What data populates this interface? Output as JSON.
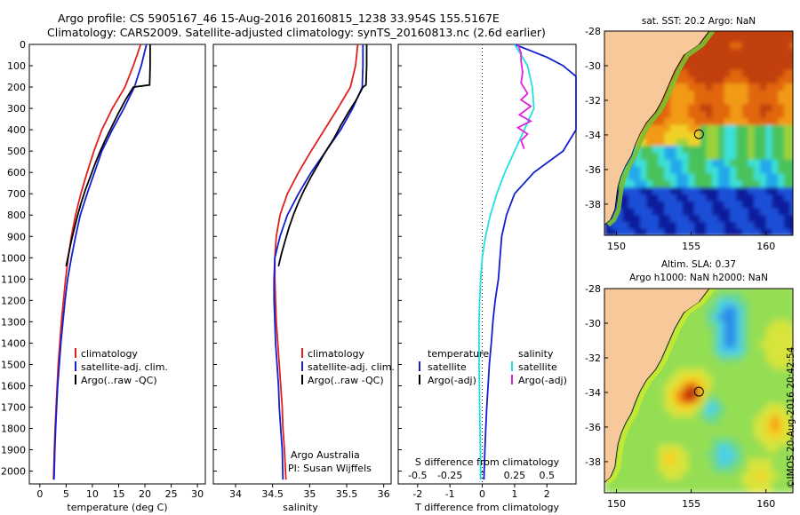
{
  "header": {
    "line1": "Argo profile: CS 5905167_46 15-Aug-2016 20160815_1238 33.954S 155.5167E",
    "line2": "Climatology: CARS2009. Satellite-adjusted climatology: synTS_20160813.nc (2.6d earlier)"
  },
  "credit": "©IMOS 20-Aug-2016 20:42:54",
  "colors": {
    "climatology": "#e02020",
    "satellite": "#1020d0",
    "argo": "#000000",
    "salinity_sat": "#20e0e0",
    "salinity_argo": "#e020e0",
    "land": "#f7c99a"
  },
  "chart_data": [
    {
      "type": "line",
      "id": "temperature",
      "xlabel": "temperature (deg C)",
      "ylabel": "",
      "xlim": [
        -2,
        31.5
      ],
      "ylim": [
        0,
        2060
      ],
      "yinverted": true,
      "xticks": [
        "0",
        "5",
        "10",
        "15",
        "20",
        "25",
        "30"
      ],
      "xtick_values": [
        0,
        5,
        10,
        15,
        20,
        25,
        30
      ],
      "yticks": [
        "0",
        "100",
        "200",
        "300",
        "400",
        "500",
        "600",
        "700",
        "800",
        "900",
        "1000",
        "1100",
        "1200",
        "1300",
        "1400",
        "1500",
        "1600",
        "1700",
        "1800",
        "1900",
        "2000"
      ],
      "ytick_values": [
        0,
        100,
        200,
        300,
        400,
        500,
        600,
        700,
        800,
        900,
        1000,
        1100,
        1200,
        1300,
        1400,
        1500,
        1600,
        1700,
        1800,
        1900,
        2000
      ],
      "legend": [
        "climatology",
        "satellite-adj. clim.",
        "Argo(..raw -QC)"
      ],
      "legend_position": "bottom-center",
      "series": [
        {
          "name": "climatology",
          "color": "#e02020",
          "depth": [
            0,
            100,
            200,
            300,
            400,
            500,
            600,
            700,
            800,
            900,
            1000,
            1100,
            1200,
            1300,
            1400,
            1500,
            1600,
            1700,
            1800,
            1900,
            2040
          ],
          "values": [
            19.2,
            17.8,
            16.2,
            13.8,
            11.8,
            10.3,
            9.0,
            7.8,
            6.8,
            6.0,
            5.4,
            4.9,
            4.5,
            4.1,
            3.8,
            3.5,
            3.3,
            3.1,
            2.9,
            2.75,
            2.6
          ]
        },
        {
          "name": "satellite-adj. clim.",
          "color": "#1020d0",
          "depth": [
            0,
            100,
            200,
            300,
            400,
            500,
            600,
            700,
            800,
            900,
            1000,
            1100,
            1200,
            1300,
            1400,
            1500,
            1600,
            1700,
            1800,
            1900,
            2040
          ],
          "values": [
            20.3,
            19.3,
            18.0,
            16.0,
            13.8,
            11.8,
            10.4,
            9.0,
            7.7,
            6.8,
            6.0,
            5.3,
            4.8,
            4.4,
            4.0,
            3.7,
            3.4,
            3.2,
            3.0,
            2.85,
            2.7
          ]
        },
        {
          "name": "Argo(..raw -QC)",
          "color": "#000000",
          "depth": [
            0,
            50,
            100,
            150,
            190,
            200,
            260,
            320,
            380,
            440,
            500,
            560,
            620,
            680,
            740,
            800,
            860,
            920,
            980,
            1040
          ],
          "values": [
            21.0,
            21.0,
            21.0,
            20.95,
            20.9,
            17.8,
            16.3,
            15.0,
            13.8,
            12.6,
            11.5,
            10.5,
            9.6,
            8.7,
            7.9,
            7.2,
            6.6,
            6.0,
            5.5,
            5.0
          ]
        }
      ]
    },
    {
      "type": "line",
      "id": "salinity",
      "xlabel": "salinity",
      "ylabel": "",
      "xlim": [
        33.7,
        36.1
      ],
      "ylim": [
        0,
        2060
      ],
      "yinverted": true,
      "xticks": [
        "34",
        "34.5",
        "35",
        "35.5",
        "36"
      ],
      "xtick_values": [
        34,
        34.5,
        35,
        35.5,
        36
      ],
      "legend": [
        "climatology",
        "satellite-adj. clim.",
        "Argo(..raw -QC)"
      ],
      "legend_position": "bottom-center",
      "annotation": [
        "Argo Australia",
        "PI: Susan Wijffels"
      ],
      "series": [
        {
          "name": "climatology",
          "color": "#e02020",
          "depth": [
            0,
            100,
            200,
            300,
            400,
            500,
            600,
            700,
            800,
            900,
            1000,
            1100,
            1200,
            1300,
            1400,
            1500,
            1600,
            1700,
            1800,
            1900,
            2040
          ],
          "values": [
            35.65,
            35.62,
            35.55,
            35.38,
            35.2,
            35.02,
            34.85,
            34.7,
            34.6,
            34.55,
            34.53,
            34.53,
            34.54,
            34.55,
            34.57,
            34.59,
            34.61,
            34.63,
            34.64,
            34.66,
            34.68
          ]
        },
        {
          "name": "satellite-adj. clim.",
          "color": "#1020d0",
          "depth": [
            0,
            100,
            200,
            300,
            400,
            500,
            600,
            700,
            800,
            900,
            1000,
            1100,
            1200,
            1300,
            1400,
            1500,
            1600,
            1700,
            1800,
            1900,
            2040
          ],
          "values": [
            35.72,
            35.72,
            35.71,
            35.58,
            35.42,
            35.22,
            35.02,
            34.85,
            34.7,
            34.6,
            34.53,
            34.52,
            34.52,
            34.53,
            34.54,
            34.56,
            34.58,
            34.59,
            34.61,
            34.63,
            34.64
          ]
        },
        {
          "name": "Argo(..raw -QC)",
          "color": "#000000",
          "depth": [
            0,
            100,
            190,
            200,
            260,
            320,
            380,
            440,
            500,
            560,
            620,
            680,
            740,
            800,
            860,
            920,
            980,
            1040
          ],
          "values": [
            35.77,
            35.77,
            35.76,
            35.72,
            35.63,
            35.52,
            35.42,
            35.33,
            35.22,
            35.12,
            35.02,
            34.93,
            34.85,
            34.78,
            34.72,
            34.67,
            34.62,
            34.58
          ]
        }
      ]
    },
    {
      "type": "line",
      "id": "difference",
      "xlabel": "T difference from climatology",
      "xlabel_top": "S difference from climatology",
      "xlim": [
        -2.6,
        2.9
      ],
      "ylim": [
        0,
        2060
      ],
      "yinverted": true,
      "xticks": [
        "-2",
        "-1",
        "0",
        "1",
        "2"
      ],
      "xtick_values": [
        -2,
        -1,
        0,
        1,
        2
      ],
      "sticks": [
        "-0.5",
        "-0.25",
        "0",
        "0.25",
        "0.5"
      ],
      "stick_values": [
        -0.5,
        -0.25,
        0,
        0.25,
        0.5
      ],
      "legend_headers": [
        "temperature",
        "salinity"
      ],
      "legend": [
        "satellite",
        "Argo(-adj)",
        "satellite",
        "Argo(-adj)"
      ],
      "legend_position": "bottom-center",
      "series": [
        {
          "name": "satellite",
          "quantity": "temperature",
          "color": "#1020d0",
          "depth": [
            0,
            30,
            60,
            100,
            150,
            200,
            300,
            400,
            500,
            600,
            700,
            800,
            900,
            1000,
            1100,
            1200,
            1300,
            1400,
            1500,
            1600,
            1700,
            1800,
            1900,
            2040
          ],
          "values": [
            1.0,
            1.5,
            2.0,
            2.5,
            2.9,
            3.2,
            3.3,
            3.2,
            2.5,
            1.6,
            1.0,
            0.75,
            0.6,
            0.55,
            0.5,
            0.4,
            0.33,
            0.28,
            0.22,
            0.18,
            0.14,
            0.11,
            0.08,
            0.05
          ]
        },
        {
          "name": "satellite",
          "quantity": "salinity",
          "color": "#20e0e0",
          "depth": [
            0,
            50,
            100,
            200,
            300,
            400,
            500,
            600,
            700,
            800,
            900,
            1000,
            1100,
            1200,
            1300,
            1400,
            1500,
            1600,
            1700,
            1800,
            1900,
            2040
          ],
          "values": [
            1.0,
            1.2,
            1.4,
            1.55,
            1.6,
            1.3,
            1.0,
            0.7,
            0.45,
            0.25,
            0.1,
            0.0,
            -0.05,
            -0.08,
            -0.1,
            -0.1,
            -0.1,
            -0.09,
            -0.08,
            -0.07,
            -0.06,
            -0.05
          ]
        },
        {
          "name": "Argo(-adj)",
          "quantity": "salinity",
          "color": "#e020e0",
          "depth": [
            0,
            40,
            80,
            130,
            180,
            230,
            260,
            290,
            330,
            360,
            390,
            420,
            450,
            490
          ],
          "values": [
            1.1,
            1.2,
            1.2,
            1.25,
            1.2,
            1.4,
            1.2,
            1.5,
            1.15,
            1.5,
            1.1,
            1.4,
            1.2,
            1.3
          ]
        }
      ]
    },
    {
      "type": "heatmap",
      "id": "sst-map",
      "title": "sat. SST: 20.2  Argo: NaN",
      "xlim": [
        149.2,
        161.8
      ],
      "ylim": [
        -39.8,
        -28
      ],
      "xticks": [
        "150",
        "155",
        "160"
      ],
      "xtick_values": [
        150,
        155,
        160
      ],
      "yticks": [
        "-28",
        "-30",
        "-32",
        "-34",
        "-36",
        "-38"
      ],
      "ytick_values": [
        -28,
        -30,
        -32,
        -34,
        -36,
        -38
      ],
      "marker": {
        "lon": 155.5167,
        "lat": -33.954
      }
    },
    {
      "type": "heatmap",
      "id": "sla-map",
      "title": "Altim. SLA: 0.37",
      "subtitle": "Argo h1000: NaN  h2000: NaN",
      "xlim": [
        149.2,
        161.8
      ],
      "ylim": [
        -39.8,
        -28
      ],
      "xticks": [
        "150",
        "155",
        "160"
      ],
      "xtick_values": [
        150,
        155,
        160
      ],
      "yticks": [
        "-28",
        "-30",
        "-32",
        "-34",
        "-36",
        "-38"
      ],
      "ytick_values": [
        -28,
        -30,
        -32,
        -34,
        -36,
        -38
      ],
      "marker": {
        "lon": 155.5167,
        "lat": -33.954
      }
    }
  ]
}
